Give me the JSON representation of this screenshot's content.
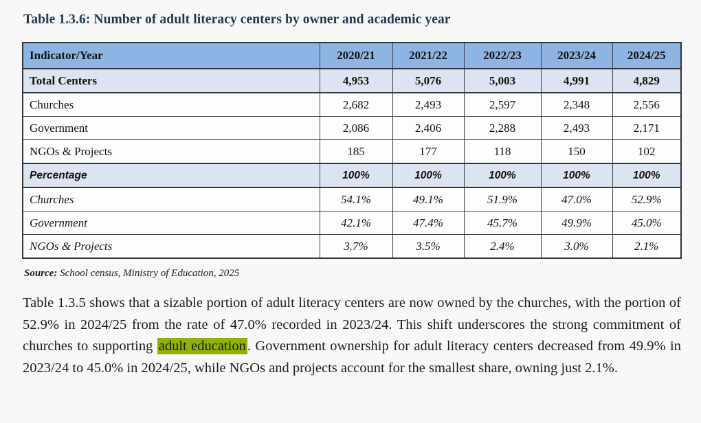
{
  "title": "Table 1.3.6: Number of adult literacy centers by owner and academic year",
  "table": {
    "header": [
      "Indicator/Year",
      "2020/21",
      "2021/22",
      "2022/23",
      "2023/24",
      "2024/25"
    ],
    "rows": [
      {
        "label": "Total Centers",
        "values": [
          "4,953",
          "5,076",
          "5,003",
          "4,991",
          "4,829"
        ]
      },
      {
        "label": "Churches",
        "values": [
          "2,682",
          "2,493",
          "2,597",
          "2,348",
          "2,556"
        ]
      },
      {
        "label": "Government",
        "values": [
          "2,086",
          "2,406",
          "2,288",
          "2,493",
          "2,171"
        ]
      },
      {
        "label": "NGOs & Projects",
        "values": [
          "185",
          "177",
          "118",
          "150",
          "102"
        ]
      },
      {
        "label": "Percentage",
        "values": [
          "100%",
          "100%",
          "100%",
          "100%",
          "100%"
        ]
      },
      {
        "label": "Churches",
        "values": [
          "54.1%",
          "49.1%",
          "51.9%",
          "47.0%",
          "52.9%"
        ]
      },
      {
        "label": "Government",
        "values": [
          "42.1%",
          "47.4%",
          "45.7%",
          "49.9%",
          "45.0%"
        ]
      },
      {
        "label": "NGOs & Projects",
        "values": [
          "3.7%",
          "3.5%",
          "2.4%",
          "3.0%",
          "2.1%"
        ]
      }
    ]
  },
  "source": {
    "label": "Source:",
    "text": " School census, Ministry of Education, 2025"
  },
  "paragraph": {
    "before": "Table 1.3.5 shows that a sizable portion of adult literacy centers are now owned by the churches, with the portion of 52.9% in 2024/25 from the rate of 47.0% recorded in 2023/24. This shift underscores the strong commitment of churches to supporting ",
    "highlight": "adult education",
    "after": ". Government ownership for adult literacy centers decreased from 49.9% in 2023/24 to 45.0% in 2024/25, while NGOs and projects account for the smallest share, owning just 2.1%."
  },
  "colors": {
    "header_bg": "#8db4e2",
    "accent_row_bg": "#dce4f1",
    "highlight": "#8fb300",
    "title_color": "#22394f",
    "page_bg": "#f8f8f8"
  }
}
